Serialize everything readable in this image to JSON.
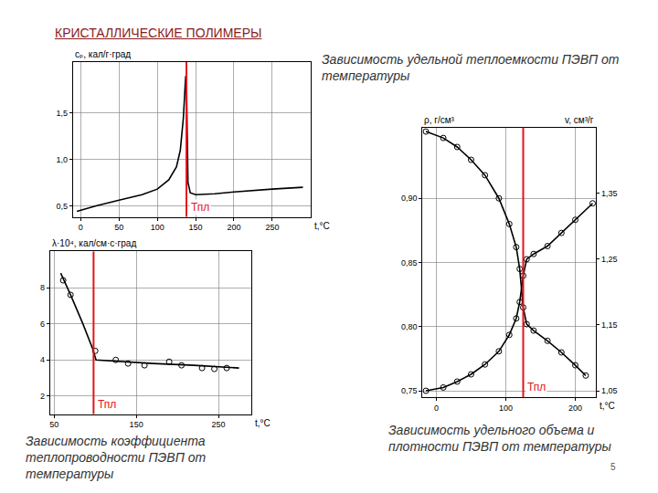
{
  "slide": {
    "title": "КРИСТАЛЛИЧЕСКИЕ ПОЛИМЕРЫ",
    "page": 5
  },
  "chart_data": [
    {
      "type": "line",
      "title": "Зависимость удельной теплоемкости ПЭВП от температуры",
      "xlabel": "t,°C",
      "ylabel": "cₚ, кал/г·град",
      "x": [
        -5,
        20,
        50,
        80,
        100,
        115,
        125,
        130,
        134,
        137,
        138,
        140,
        143,
        150,
        175,
        200,
        250,
        290
      ],
      "values": [
        0.44,
        0.5,
        0.56,
        0.62,
        0.68,
        0.78,
        0.92,
        1.1,
        1.45,
        1.9,
        1.85,
        0.75,
        0.64,
        0.62,
        0.63,
        0.65,
        0.68,
        0.7
      ],
      "color": "#000000",
      "xlim": [
        -10,
        300
      ],
      "xticks": [
        0,
        50,
        100,
        150,
        200,
        250
      ],
      "ylim": [
        0.38,
        2.05
      ],
      "yticks": [
        {
          "value": 0.5,
          "label": "0,5"
        },
        {
          "value": 1.0,
          "label": "1,0"
        },
        {
          "value": 1.5,
          "label": "1,5"
        }
      ],
      "grid": true,
      "annotations": [
        {
          "x": 138,
          "text": "Тпл"
        }
      ]
    },
    {
      "type": "line",
      "title": "Зависимость коэффициента теплопроводности ПЭВП от температуры",
      "xlabel": "t,°C",
      "ylabel": "λ·10⁴, кал/см·с·град",
      "series": [
        {
          "type": "line",
          "color": "#000000",
          "x": [
            58,
            70,
            85,
            97,
            101,
            130,
            170,
            220,
            275
          ],
          "values": [
            8.8,
            7.6,
            6.0,
            4.6,
            4.0,
            3.9,
            3.8,
            3.7,
            3.55
          ]
        },
        {
          "type": "scatter",
          "marker": "circle-open",
          "color": "#000000",
          "x": [
            61,
            70,
            100,
            125,
            140,
            160,
            190,
            205,
            230,
            245,
            260
          ],
          "values": [
            8.4,
            7.6,
            4.5,
            4.0,
            3.8,
            3.7,
            3.9,
            3.7,
            3.55,
            3.5,
            3.55
          ]
        }
      ],
      "xlim": [
        45,
        290
      ],
      "xticks": [
        50,
        150,
        250
      ],
      "ylim": [
        1,
        10
      ],
      "yticks": [
        2,
        4,
        6,
        8
      ],
      "grid": true,
      "annotations": [
        {
          "x": 98,
          "text": "Тпл"
        }
      ]
    },
    {
      "type": "line",
      "title": "Зависимость удельного объема и плотности ПЭВП от температуры",
      "xlabel": "t,°C",
      "ylabel": "ρ, г/см³",
      "y2label": "v, см³/г",
      "series": [
        {
          "axis": "y",
          "marker": "circle-open",
          "color": "#000000",
          "x": [
            -15,
            10,
            30,
            50,
            70,
            90,
            105,
            115,
            120,
            125,
            130,
            140,
            160,
            180,
            200,
            215
          ],
          "values": [
            0.952,
            0.947,
            0.94,
            0.93,
            0.918,
            0.9,
            0.88,
            0.862,
            0.845,
            0.815,
            0.802,
            0.797,
            0.789,
            0.78,
            0.77,
            0.762
          ]
        },
        {
          "axis": "y2",
          "marker": "circle-open",
          "color": "#000000",
          "x": [
            -15,
            10,
            30,
            50,
            70,
            90,
            105,
            115,
            120,
            125,
            130,
            140,
            160,
            180,
            200,
            225
          ],
          "values": [
            1.05,
            1.055,
            1.064,
            1.075,
            1.09,
            1.11,
            1.135,
            1.16,
            1.185,
            1.225,
            1.25,
            1.258,
            1.27,
            1.29,
            1.31,
            1.335
          ]
        }
      ],
      "xlim": [
        -20,
        230
      ],
      "xticks": [
        0,
        100,
        200
      ],
      "ylim": [
        0.745,
        0.955
      ],
      "yticks": [
        {
          "value": 0.75,
          "label": "0,75"
        },
        {
          "value": 0.8,
          "label": "0,80"
        },
        {
          "value": 0.85,
          "label": "0,85"
        },
        {
          "value": 0.9,
          "label": "0,90"
        }
      ],
      "y2lim": [
        1.04,
        1.45
      ],
      "y2ticks": [
        {
          "value": 1.05,
          "label": "1,05"
        },
        {
          "value": 1.15,
          "label": "1,15"
        },
        {
          "value": 1.25,
          "label": "1,25"
        },
        {
          "value": 1.35,
          "label": "1,35"
        }
      ],
      "grid": true,
      "annotations": [
        {
          "x": 125,
          "text": "Тпл"
        }
      ]
    }
  ]
}
